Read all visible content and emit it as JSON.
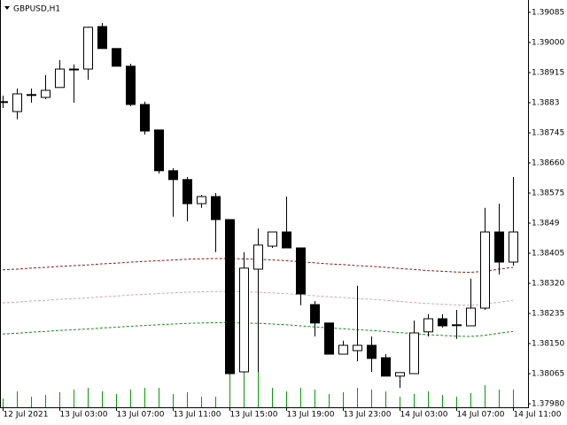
{
  "chart_data": {
    "type": "candlestick",
    "title": "GBPUSD,H1",
    "categories": [
      "12 Jul 2021",
      null,
      null,
      null,
      "13 Jul 03:00",
      null,
      null,
      null,
      "13 Jul 07:00",
      null,
      null,
      null,
      "13 Jul 11:00",
      null,
      null,
      null,
      "13 Jul 15:00",
      null,
      null,
      null,
      "13 Jul 19:00",
      null,
      null,
      null,
      "13 Jul 23:00",
      null,
      null,
      null,
      "14 Jul 03:00",
      null,
      null,
      null,
      "14 Jul 07:00",
      null,
      null,
      null,
      "14 Jul 11:00"
    ],
    "open": [
      1.38833,
      1.38805,
      1.38853,
      1.38845,
      1.38873,
      1.38925,
      1.38925,
      1.39045,
      1.38983,
      1.38933,
      1.38825,
      1.38753,
      1.38638,
      1.38613,
      1.38545,
      1.38565,
      1.385,
      1.3807,
      1.3836,
      1.38425,
      1.38465,
      1.3842,
      1.3826,
      1.38208,
      1.3812,
      1.3813,
      1.38145,
      1.3811,
      1.38058,
      1.38065,
      1.38183,
      1.3822,
      1.38203,
      1.382,
      1.3825,
      1.38465,
      1.3838
    ],
    "high": [
      1.3885,
      1.3887,
      1.3887,
      1.38908,
      1.3895,
      1.38938,
      1.39045,
      1.39055,
      1.38983,
      1.3894,
      1.38833,
      1.38753,
      1.38645,
      1.3862,
      1.3857,
      1.38575,
      1.385,
      1.38408,
      1.38475,
      1.38465,
      1.38565,
      1.3842,
      1.3827,
      1.38208,
      1.38158,
      1.38313,
      1.3817,
      1.3812,
      1.38068,
      1.38215,
      1.38233,
      1.38233,
      1.38245,
      1.38333,
      1.38533,
      1.38545,
      1.3862
    ],
    "low": [
      1.38815,
      1.38783,
      1.3883,
      1.3884,
      1.38873,
      1.3883,
      1.38895,
      1.38983,
      1.38933,
      1.3882,
      1.3874,
      1.3863,
      1.38508,
      1.38495,
      1.38533,
      1.38408,
      1.38065,
      1.3807,
      1.3807,
      1.3842,
      1.3842,
      1.38258,
      1.3817,
      1.3812,
      1.3812,
      1.381,
      1.3807,
      1.38058,
      1.38025,
      1.38065,
      1.3817,
      1.38195,
      1.38163,
      1.382,
      1.38245,
      1.38345,
      1.3837
    ],
    "close": [
      1.38833,
      1.38855,
      1.38853,
      1.38865,
      1.38925,
      1.38925,
      1.39043,
      1.38983,
      1.38933,
      1.38825,
      1.3875,
      1.38638,
      1.38613,
      1.38545,
      1.38565,
      1.385,
      1.38065,
      1.38363,
      1.38428,
      1.38465,
      1.3842,
      1.3829,
      1.38208,
      1.3812,
      1.38145,
      1.38145,
      1.38108,
      1.38058,
      1.38068,
      1.3818,
      1.3822,
      1.382,
      1.38203,
      1.3825,
      1.38465,
      1.3838,
      1.38465
    ],
    "volume": [
      10,
      18,
      12,
      14,
      17,
      20,
      22,
      18,
      15,
      20,
      22,
      22,
      15,
      17,
      12,
      12,
      60,
      40,
      45,
      22,
      18,
      22,
      20,
      15,
      17,
      22,
      20,
      18,
      12,
      15,
      18,
      14,
      12,
      16,
      25,
      20,
      20
    ],
    "volume_color": "#00a000",
    "lines": [
      {
        "color": "#8b1a1a",
        "values": [
          1.38358,
          1.3836,
          1.38363,
          1.38365,
          1.38368,
          1.3837,
          1.38372,
          1.38375,
          1.38377,
          1.3838,
          1.38382,
          1.38384,
          1.38386,
          1.38388,
          1.38389,
          1.3839,
          1.3839,
          1.38389,
          1.38388,
          1.38386,
          1.38384,
          1.38381,
          1.38378,
          1.38375,
          1.38373,
          1.3837,
          1.38368,
          1.38365,
          1.38362,
          1.38359,
          1.38356,
          1.38354,
          1.38352,
          1.38351,
          1.38354,
          1.3836,
          1.38365
        ]
      },
      {
        "color": "#d9a3ad",
        "values": [
          1.38265,
          1.38267,
          1.3827,
          1.38272,
          1.38275,
          1.38277,
          1.38279,
          1.38282,
          1.38284,
          1.38287,
          1.38289,
          1.38291,
          1.38293,
          1.38295,
          1.38296,
          1.38297,
          1.38297,
          1.38296,
          1.38295,
          1.38293,
          1.38291,
          1.38288,
          1.38285,
          1.38282,
          1.3828,
          1.38277,
          1.38275,
          1.38272,
          1.38269,
          1.38266,
          1.38263,
          1.38261,
          1.38259,
          1.38258,
          1.38261,
          1.38267,
          1.38272
        ]
      },
      {
        "color": "#1a8a1a",
        "values": [
          1.38177,
          1.38179,
          1.38182,
          1.38184,
          1.38187,
          1.38189,
          1.38191,
          1.38194,
          1.38196,
          1.38199,
          1.38201,
          1.38203,
          1.38205,
          1.38207,
          1.38208,
          1.38209,
          1.38209,
          1.38208,
          1.38207,
          1.38205,
          1.38203,
          1.382,
          1.38197,
          1.38194,
          1.38192,
          1.38189,
          1.38187,
          1.38184,
          1.38181,
          1.38178,
          1.38175,
          1.38173,
          1.38171,
          1.3817,
          1.38173,
          1.38179,
          1.38184
        ]
      }
    ],
    "ylim": [
      1.3797,
      1.3912
    ],
    "yticks": [
      1.39085,
      {
        "value": 1.39,
        "label": "1.39000"
      },
      1.38915,
      1.3883,
      1.38745,
      {
        "value": 1.3866,
        "label": "1.38660"
      },
      1.38575,
      1.3849,
      1.38405,
      {
        "value": 1.3832,
        "label": "1.38320"
      },
      1.38235,
      {
        "value": 1.3815,
        "label": "1.38150"
      },
      1.38065,
      {
        "value": 1.3798,
        "label": "1.37980"
      }
    ]
  }
}
